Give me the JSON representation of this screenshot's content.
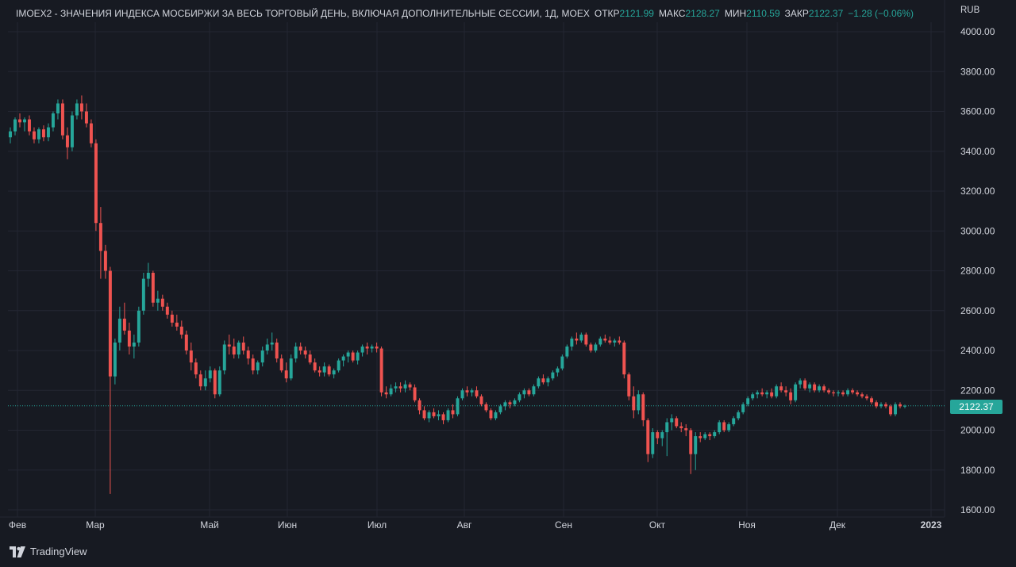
{
  "header": {
    "title": "IMOEX2 - ЗНАЧЕНИЯ ИНДЕКСА МОСБИРЖИ ЗА ВЕСЬ ТОРГОВЫЙ ДЕНЬ, ВКЛЮЧАЯ ДОПОЛНИТЕЛЬНЫЕ СЕССИИ, 1Д, MOEX",
    "open_label": "ОТКР",
    "open_value": "2121.99",
    "high_label": "МАКС",
    "high_value": "2128.27",
    "low_label": "МИН",
    "low_value": "2110.59",
    "close_label": "ЗАКР",
    "close_value": "2122.37",
    "change_value": "−1.28 (−0.06%)"
  },
  "currency": "RUB",
  "last_price_label": "2122.37",
  "brand": "TradingView",
  "colors": {
    "background": "#171a22",
    "grid": "#232632",
    "text": "#d1d4dc",
    "up": "#26a69a",
    "down": "#ef5350",
    "price_line": "#26a69a"
  },
  "chart_data": {
    "type": "candlestick",
    "y_ticks": [
      "4000.00",
      "3800.00",
      "3600.00",
      "3400.00",
      "3200.00",
      "3000.00",
      "2800.00",
      "2600.00",
      "2400.00",
      "2200.00",
      "2000.00",
      "1800.00",
      "1600.00"
    ],
    "ylim": [
      1600,
      4000
    ],
    "x_ticks": [
      "Фев",
      "Мар",
      "Май",
      "Июн",
      "Июл",
      "Авг",
      "Сен",
      "Окт",
      "Ноя",
      "Дек",
      "2023"
    ],
    "last_price": 2122.37,
    "candles": [
      [
        3470,
        3520,
        3440,
        3500
      ],
      [
        3500,
        3570,
        3480,
        3560
      ],
      [
        3560,
        3590,
        3520,
        3545
      ],
      [
        3545,
        3570,
        3500,
        3560
      ],
      [
        3560,
        3580,
        3480,
        3500
      ],
      [
        3500,
        3520,
        3440,
        3460
      ],
      [
        3460,
        3520,
        3440,
        3510
      ],
      [
        3510,
        3530,
        3450,
        3470
      ],
      [
        3470,
        3540,
        3450,
        3520
      ],
      [
        3520,
        3600,
        3500,
        3590
      ],
      [
        3590,
        3660,
        3560,
        3640
      ],
      [
        3640,
        3660,
        3460,
        3480
      ],
      [
        3480,
        3520,
        3360,
        3420
      ],
      [
        3420,
        3600,
        3400,
        3580
      ],
      [
        3580,
        3660,
        3560,
        3640
      ],
      [
        3640,
        3680,
        3560,
        3600
      ],
      [
        3600,
        3640,
        3520,
        3540
      ],
      [
        3540,
        3560,
        3420,
        3440
      ],
      [
        3440,
        3460,
        3000,
        3040
      ],
      [
        3040,
        3120,
        2760,
        2900
      ],
      [
        2900,
        2930,
        2760,
        2800
      ],
      [
        2800,
        2820,
        1680,
        2270
      ],
      [
        2270,
        2460,
        2230,
        2440
      ],
      [
        2440,
        2620,
        2400,
        2560
      ],
      [
        2560,
        2640,
        2480,
        2500
      ],
      [
        2500,
        2540,
        2380,
        2420
      ],
      [
        2420,
        2480,
        2360,
        2440
      ],
      [
        2440,
        2620,
        2420,
        2600
      ],
      [
        2600,
        2790,
        2580,
        2760
      ],
      [
        2760,
        2840,
        2720,
        2790
      ],
      [
        2790,
        2800,
        2620,
        2640
      ],
      [
        2640,
        2700,
        2600,
        2660
      ],
      [
        2660,
        2680,
        2600,
        2620
      ],
      [
        2620,
        2640,
        2560,
        2580
      ],
      [
        2580,
        2600,
        2520,
        2540
      ],
      [
        2540,
        2580,
        2500,
        2520
      ],
      [
        2520,
        2550,
        2460,
        2480
      ],
      [
        2480,
        2500,
        2380,
        2400
      ],
      [
        2400,
        2440,
        2300,
        2340
      ],
      [
        2340,
        2360,
        2260,
        2280
      ],
      [
        2280,
        2300,
        2200,
        2220
      ],
      [
        2220,
        2300,
        2200,
        2260
      ],
      [
        2260,
        2320,
        2240,
        2300
      ],
      [
        2300,
        2310,
        2160,
        2180
      ],
      [
        2180,
        2320,
        2170,
        2300
      ],
      [
        2300,
        2450,
        2280,
        2430
      ],
      [
        2430,
        2480,
        2380,
        2420
      ],
      [
        2420,
        2460,
        2360,
        2380
      ],
      [
        2380,
        2450,
        2360,
        2440
      ],
      [
        2440,
        2470,
        2380,
        2400
      ],
      [
        2400,
        2420,
        2330,
        2360
      ],
      [
        2360,
        2380,
        2280,
        2300
      ],
      [
        2300,
        2350,
        2280,
        2340
      ],
      [
        2340,
        2420,
        2320,
        2400
      ],
      [
        2400,
        2460,
        2380,
        2430
      ],
      [
        2430,
        2490,
        2400,
        2440
      ],
      [
        2440,
        2460,
        2340,
        2360
      ],
      [
        2360,
        2380,
        2290,
        2300
      ],
      [
        2300,
        2340,
        2240,
        2260
      ],
      [
        2260,
        2380,
        2250,
        2360
      ],
      [
        2360,
        2440,
        2340,
        2420
      ],
      [
        2420,
        2440,
        2380,
        2400
      ],
      [
        2400,
        2420,
        2360,
        2380
      ],
      [
        2380,
        2400,
        2330,
        2340
      ],
      [
        2340,
        2360,
        2290,
        2300
      ],
      [
        2300,
        2320,
        2270,
        2290
      ],
      [
        2290,
        2340,
        2270,
        2320
      ],
      [
        2320,
        2330,
        2270,
        2280
      ],
      [
        2280,
        2310,
        2260,
        2300
      ],
      [
        2300,
        2360,
        2290,
        2350
      ],
      [
        2350,
        2380,
        2320,
        2370
      ],
      [
        2370,
        2400,
        2340,
        2390
      ],
      [
        2390,
        2400,
        2340,
        2350
      ],
      [
        2350,
        2400,
        2330,
        2390
      ],
      [
        2390,
        2430,
        2370,
        2420
      ],
      [
        2420,
        2440,
        2380,
        2410
      ],
      [
        2410,
        2430,
        2390,
        2420
      ],
      [
        2420,
        2440,
        2390,
        2410
      ],
      [
        2410,
        2420,
        2170,
        2190
      ],
      [
        2190,
        2220,
        2160,
        2180
      ],
      [
        2180,
        2230,
        2170,
        2210
      ],
      [
        2210,
        2240,
        2190,
        2220
      ],
      [
        2220,
        2240,
        2190,
        2210
      ],
      [
        2210,
        2250,
        2190,
        2230
      ],
      [
        2230,
        2240,
        2200,
        2215
      ],
      [
        2215,
        2230,
        2140,
        2150
      ],
      [
        2150,
        2160,
        2080,
        2100
      ],
      [
        2100,
        2120,
        2050,
        2060
      ],
      [
        2060,
        2100,
        2040,
        2090
      ],
      [
        2090,
        2110,
        2060,
        2070
      ],
      [
        2070,
        2100,
        2050,
        2080
      ],
      [
        2080,
        2090,
        2030,
        2050
      ],
      [
        2050,
        2110,
        2040,
        2100
      ],
      [
        2100,
        2130,
        2060,
        2080
      ],
      [
        2080,
        2170,
        2070,
        2160
      ],
      [
        2160,
        2210,
        2150,
        2200
      ],
      [
        2200,
        2220,
        2170,
        2190
      ],
      [
        2190,
        2210,
        2170,
        2200
      ],
      [
        2200,
        2220,
        2160,
        2170
      ],
      [
        2170,
        2180,
        2120,
        2130
      ],
      [
        2130,
        2140,
        2090,
        2100
      ],
      [
        2100,
        2110,
        2050,
        2060
      ],
      [
        2060,
        2100,
        2050,
        2090
      ],
      [
        2090,
        2130,
        2080,
        2120
      ],
      [
        2120,
        2150,
        2100,
        2140
      ],
      [
        2140,
        2150,
        2110,
        2130
      ],
      [
        2130,
        2160,
        2120,
        2150
      ],
      [
        2150,
        2190,
        2140,
        2180
      ],
      [
        2180,
        2210,
        2160,
        2200
      ],
      [
        2200,
        2210,
        2170,
        2180
      ],
      [
        2180,
        2230,
        2170,
        2220
      ],
      [
        2220,
        2270,
        2210,
        2260
      ],
      [
        2260,
        2280,
        2230,
        2240
      ],
      [
        2240,
        2270,
        2220,
        2260
      ],
      [
        2260,
        2300,
        2250,
        2290
      ],
      [
        2290,
        2320,
        2270,
        2310
      ],
      [
        2310,
        2380,
        2300,
        2370
      ],
      [
        2370,
        2430,
        2360,
        2420
      ],
      [
        2420,
        2470,
        2400,
        2460
      ],
      [
        2460,
        2490,
        2430,
        2450
      ],
      [
        2450,
        2490,
        2440,
        2480
      ],
      [
        2480,
        2490,
        2420,
        2430
      ],
      [
        2430,
        2440,
        2390,
        2400
      ],
      [
        2400,
        2440,
        2390,
        2430
      ],
      [
        2430,
        2470,
        2420,
        2460
      ],
      [
        2460,
        2480,
        2440,
        2450
      ],
      [
        2450,
        2470,
        2430,
        2440
      ],
      [
        2440,
        2460,
        2420,
        2450
      ],
      [
        2450,
        2470,
        2430,
        2440
      ],
      [
        2440,
        2450,
        2260,
        2280
      ],
      [
        2280,
        2290,
        2150,
        2170
      ],
      [
        2170,
        2220,
        2060,
        2100
      ],
      [
        2100,
        2200,
        2080,
        2180
      ],
      [
        2180,
        2190,
        2020,
        2050
      ],
      [
        2050,
        2060,
        1840,
        1880
      ],
      [
        1880,
        2010,
        1860,
        1990
      ],
      [
        1990,
        2000,
        1930,
        1960
      ],
      [
        1960,
        2000,
        1920,
        1990
      ],
      [
        1990,
        2060,
        1870,
        2040
      ],
      [
        2040,
        2080,
        2000,
        2060
      ],
      [
        2060,
        2070,
        2010,
        2020
      ],
      [
        2020,
        2040,
        1990,
        2010
      ],
      [
        2010,
        2030,
        1970,
        2000
      ],
      [
        2000,
        2010,
        1780,
        1880
      ],
      [
        1880,
        1990,
        1800,
        1970
      ],
      [
        1970,
        1990,
        1940,
        1960
      ],
      [
        1960,
        1990,
        1950,
        1980
      ],
      [
        1980,
        1990,
        1950,
        1970
      ],
      [
        1970,
        2000,
        1960,
        1990
      ],
      [
        1990,
        2050,
        1980,
        2040
      ],
      [
        2040,
        2050,
        1990,
        2000
      ],
      [
        2000,
        2040,
        1990,
        2030
      ],
      [
        2030,
        2070,
        2020,
        2060
      ],
      [
        2060,
        2100,
        2050,
        2090
      ],
      [
        2090,
        2140,
        2080,
        2130
      ],
      [
        2130,
        2170,
        2120,
        2160
      ],
      [
        2160,
        2190,
        2150,
        2180
      ],
      [
        2180,
        2200,
        2160,
        2190
      ],
      [
        2190,
        2210,
        2170,
        2180
      ],
      [
        2180,
        2200,
        2160,
        2190
      ],
      [
        2190,
        2210,
        2160,
        2170
      ],
      [
        2170,
        2230,
        2160,
        2220
      ],
      [
        2220,
        2240,
        2190,
        2200
      ],
      [
        2200,
        2220,
        2170,
        2190
      ],
      [
        2190,
        2210,
        2130,
        2150
      ],
      [
        2150,
        2240,
        2140,
        2230
      ],
      [
        2230,
        2260,
        2210,
        2250
      ],
      [
        2250,
        2260,
        2200,
        2210
      ],
      [
        2210,
        2240,
        2190,
        2230
      ],
      [
        2230,
        2240,
        2190,
        2200
      ],
      [
        2200,
        2230,
        2190,
        2220
      ],
      [
        2220,
        2230,
        2190,
        2200
      ],
      [
        2200,
        2210,
        2180,
        2190
      ],
      [
        2190,
        2200,
        2170,
        2185
      ],
      [
        2185,
        2200,
        2170,
        2190
      ],
      [
        2190,
        2200,
        2170,
        2180
      ],
      [
        2180,
        2210,
        2170,
        2200
      ],
      [
        2200,
        2210,
        2180,
        2190
      ],
      [
        2190,
        2200,
        2170,
        2180
      ],
      [
        2180,
        2190,
        2160,
        2170
      ],
      [
        2170,
        2180,
        2150,
        2160
      ],
      [
        2160,
        2170,
        2130,
        2140
      ],
      [
        2140,
        2150,
        2110,
        2120
      ],
      [
        2120,
        2140,
        2110,
        2130
      ],
      [
        2130,
        2140,
        2110,
        2120
      ],
      [
        2120,
        2130,
        2070,
        2080
      ],
      [
        2080,
        2140,
        2070,
        2130
      ],
      [
        2130,
        2140,
        2110,
        2120
      ],
      [
        2121.99,
        2128.27,
        2110.59,
        2122.37
      ]
    ]
  }
}
